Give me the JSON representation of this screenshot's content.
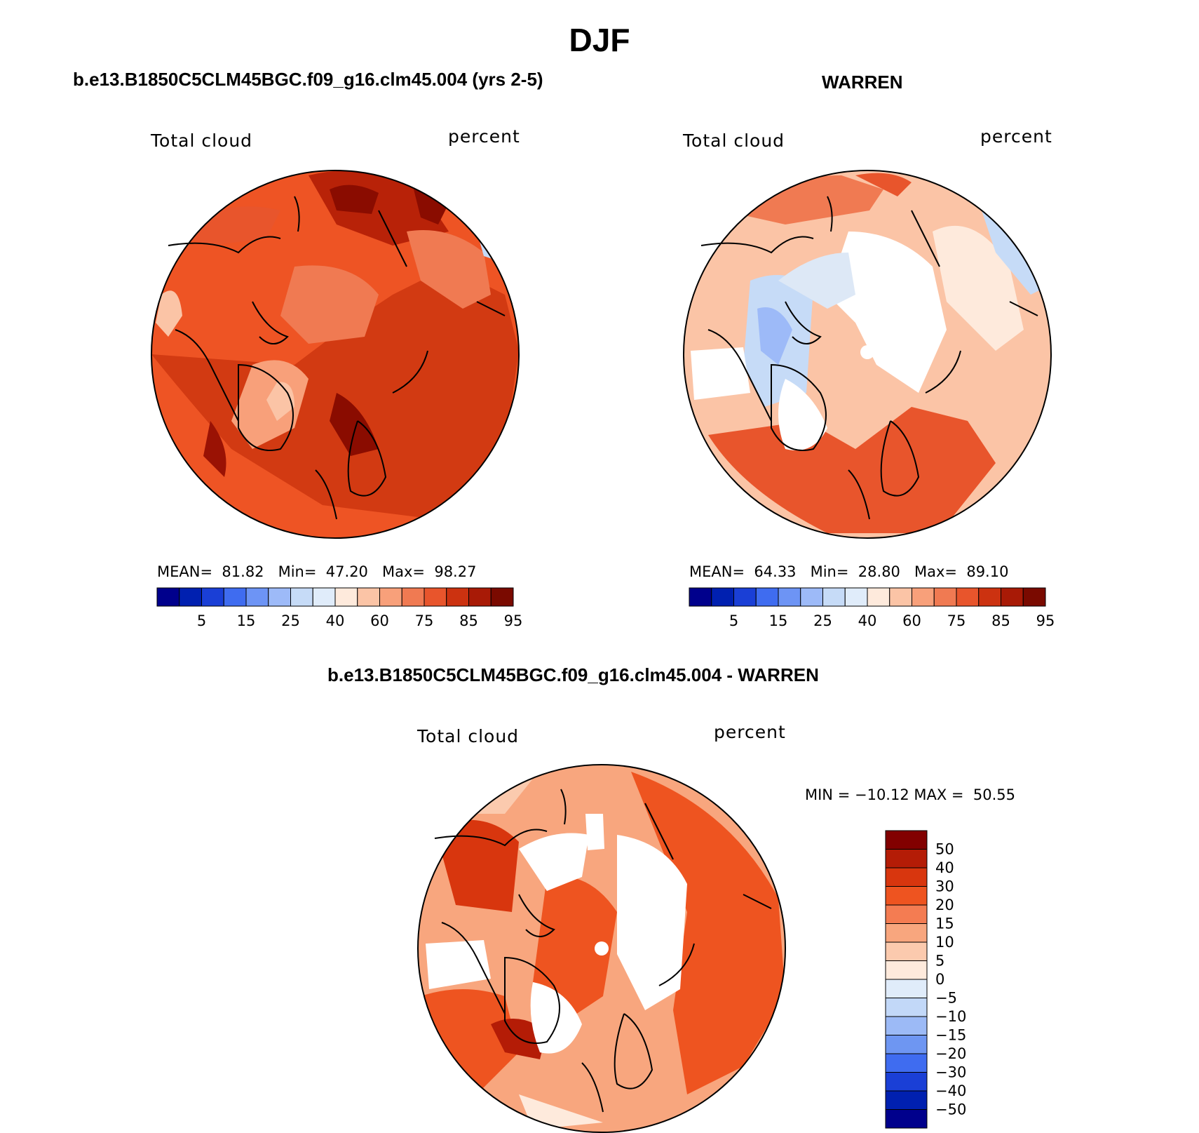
{
  "page": {
    "season": "DJF",
    "left_title": "b.e13.B1850C5CLM45BGC.f09_g16.clm45.004 (yrs 2-5)",
    "right_title": "WARREN",
    "bottom_title": "b.e13.B1850C5CLM45BGC.f09_g16.clm45.004 - WARREN"
  },
  "panels": [
    {
      "id": "model",
      "variable": "Total cloud",
      "units": "percent",
      "stats": {
        "mean_label": "MEAN=",
        "mean": "81.82",
        "min_label": "Min=",
        "min": "47.20",
        "max_label": "Max=",
        "max": "98.27"
      },
      "colorbar_labels": [
        "5",
        "15",
        "25",
        "40",
        "60",
        "75",
        "85",
        "95"
      ],
      "field_color": "#ee5424"
    },
    {
      "id": "obs",
      "variable": "Total cloud",
      "units": "percent",
      "stats": {
        "mean_label": "MEAN=",
        "mean": "64.33",
        "min_label": "Min=",
        "min": "28.80",
        "max_label": "Max=",
        "max": "89.10"
      },
      "colorbar_labels": [
        "5",
        "15",
        "25",
        "40",
        "60",
        "75",
        "85",
        "95"
      ],
      "field_color": "#fbc4a6"
    },
    {
      "id": "diff",
      "variable": "Total cloud",
      "units": "percent",
      "stats": {
        "min_label": "MIN =",
        "min": "−10.12",
        "max_label": "MAX =",
        "max": "50.55"
      },
      "colorbar_labels": [
        "50",
        "40",
        "30",
        "20",
        "15",
        "10",
        "5",
        "0",
        "−5",
        "−10",
        "−15",
        "−20",
        "−30",
        "−40",
        "−50"
      ],
      "field_color": "#f8855e"
    }
  ],
  "colors": {
    "abs_colorbar": [
      "#00008c",
      "#0020b0",
      "#1a3fd6",
      "#3f6cf0",
      "#6d94f5",
      "#9dbaf8",
      "#c6dbf7",
      "#e0ecfa",
      "#feeadc",
      "#fbc4a6",
      "#f8a07a",
      "#f07a52",
      "#e8552c",
      "#cc3210",
      "#a81a06",
      "#7a0a00"
    ],
    "diff_colorbar": [
      "#820000",
      "#b41c06",
      "#d8360e",
      "#ee5420",
      "#f47c52",
      "#f8a67e",
      "#fbcaae",
      "#feeadc",
      "#e0ecfa",
      "#c2d8f8",
      "#9cbaf6",
      "#6e96f2",
      "#3f6cf0",
      "#1a3fd6",
      "#0020b0",
      "#00008c"
    ]
  }
}
